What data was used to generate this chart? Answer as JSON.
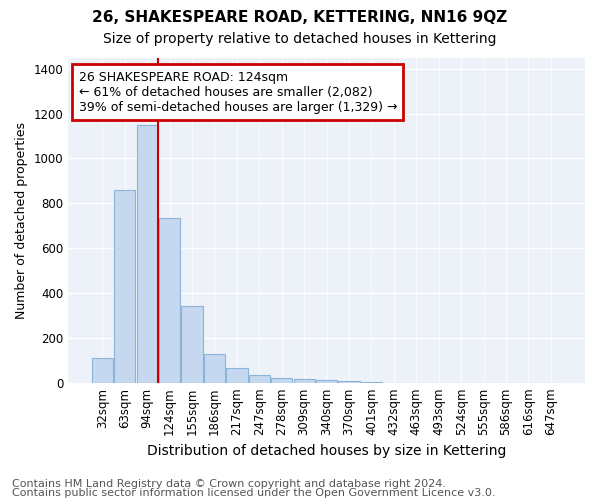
{
  "title": "26, SHAKESPEARE ROAD, KETTERING, NN16 9QZ",
  "subtitle": "Size of property relative to detached houses in Kettering",
  "xlabel": "Distribution of detached houses by size in Kettering",
  "ylabel": "Number of detached properties",
  "categories": [
    "32sqm",
    "63sqm",
    "94sqm",
    "124sqm",
    "155sqm",
    "186sqm",
    "217sqm",
    "247sqm",
    "278sqm",
    "309sqm",
    "340sqm",
    "370sqm",
    "401sqm",
    "432sqm",
    "463sqm",
    "493sqm",
    "524sqm",
    "555sqm",
    "586sqm",
    "616sqm",
    "647sqm"
  ],
  "values": [
    110,
    860,
    1150,
    735,
    340,
    130,
    65,
    35,
    22,
    15,
    12,
    8,
    5,
    0,
    0,
    0,
    0,
    0,
    0,
    0,
    0
  ],
  "bar_color": "#c5d8ef",
  "bar_edgecolor": "#8cb4d8",
  "vline_index": 2,
  "vline_color": "#cc0000",
  "annotation_text": "26 SHAKESPEARE ROAD: 124sqm\n← 61% of detached houses are smaller (2,082)\n39% of semi-detached houses are larger (1,329) →",
  "annotation_box_color": "#cc0000",
  "ylim": [
    0,
    1450
  ],
  "yticks": [
    0,
    200,
    400,
    600,
    800,
    1000,
    1200,
    1400
  ],
  "bg_color": "#ffffff",
  "plot_bg_color": "#edf2f9",
  "grid_color": "#ffffff",
  "footer_line1": "Contains HM Land Registry data © Crown copyright and database right 2024.",
  "footer_line2": "Contains public sector information licensed under the Open Government Licence v3.0.",
  "title_fontsize": 11,
  "subtitle_fontsize": 10,
  "xlabel_fontsize": 10,
  "ylabel_fontsize": 9,
  "tick_fontsize": 8.5,
  "annotation_fontsize": 9,
  "footer_fontsize": 8
}
